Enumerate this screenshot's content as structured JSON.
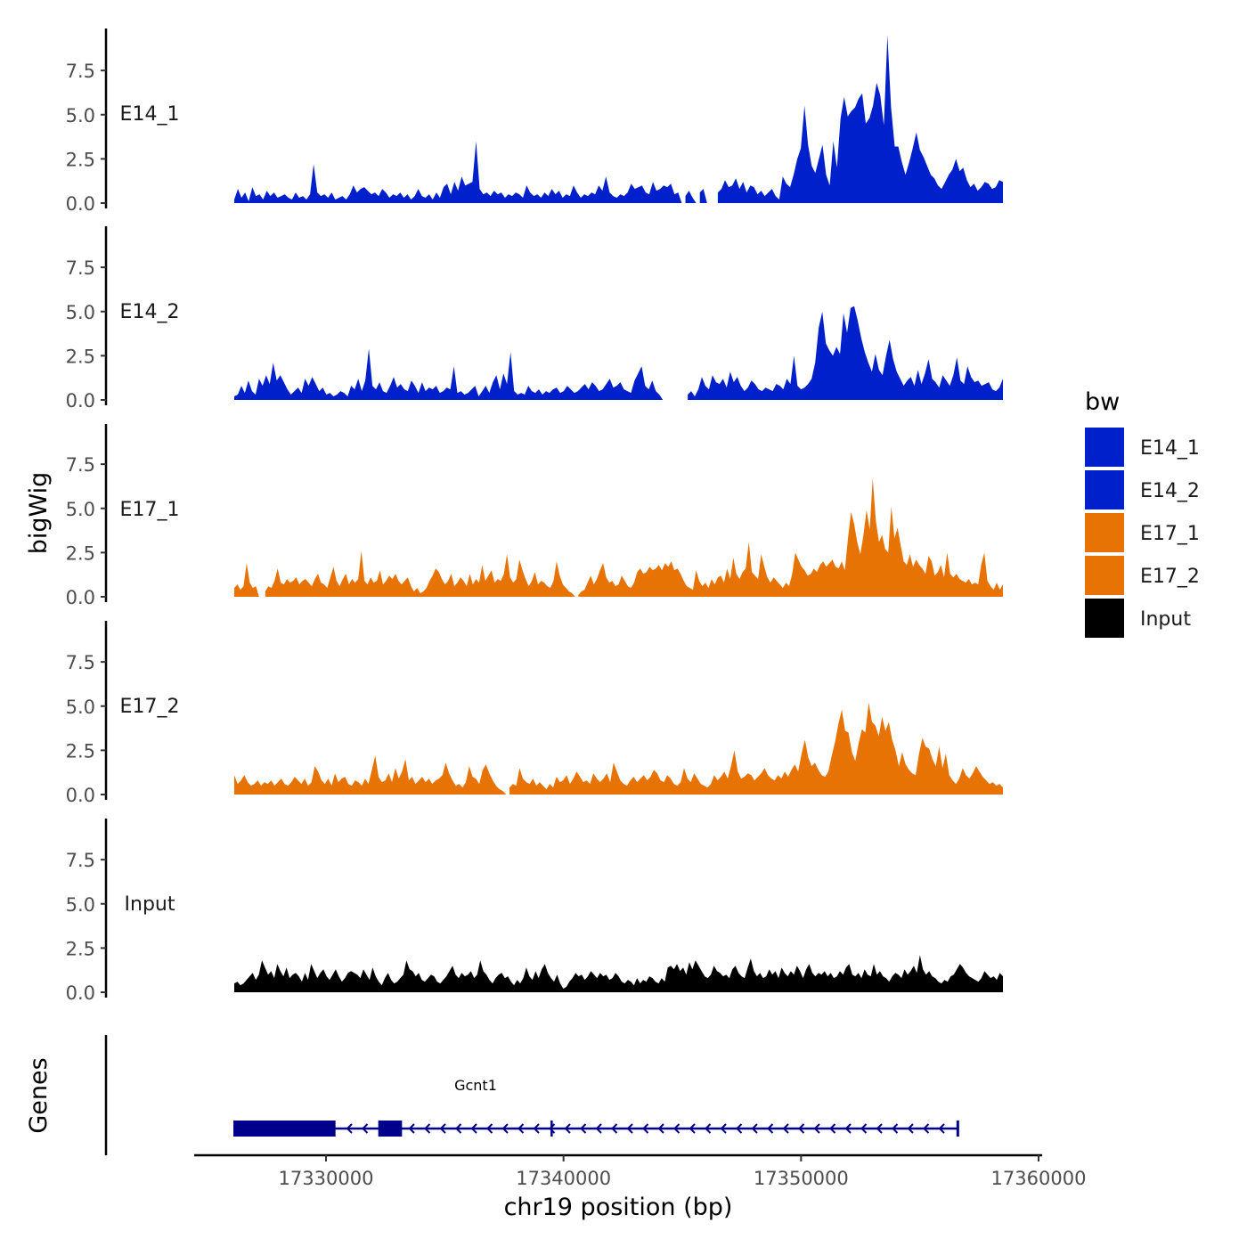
{
  "chart_data": {
    "type": "area",
    "title": "",
    "xlabel": "chr19 position (bp)",
    "ylabel": "bigWig",
    "xlim": [
      17324500,
      17360100
    ],
    "ylim": [
      0,
      10
    ],
    "x_ticks": [
      17330000,
      17340000,
      17350000,
      17360000
    ],
    "x_tick_labels": [
      "17330000",
      "17340000",
      "17350000",
      "17360000"
    ],
    "y_ticks": [
      0,
      2.5,
      5,
      7.5
    ],
    "y_tick_labels": [
      "0.0",
      "2.5",
      "5.0",
      "7.5"
    ],
    "data_range": [
      17326000,
      17358500
    ],
    "grid": false,
    "legend": {
      "title": "bw",
      "position": "right"
    },
    "series": [
      {
        "name": "E14_1",
        "label": "E14_1",
        "color": "#0020CC",
        "values": [
          0.2,
          0.8,
          0.3,
          0.6,
          0.1,
          0.9,
          0.4,
          0.5,
          0.2,
          0.7,
          0.4,
          0.6,
          0.3,
          0.4,
          0.5,
          0.3,
          0.2,
          0.6,
          0.3,
          0.4,
          0.2,
          0.5,
          2.2,
          0.6,
          0.4,
          0.5,
          0.3,
          0.6,
          0.2,
          0.3,
          0.4,
          0.2,
          0.5,
          1.0,
          0.6,
          0.8,
          0.9,
          0.7,
          0.5,
          0.6,
          0.4,
          0.8,
          0.6,
          0.3,
          0.5,
          0.4,
          0.6,
          0.3,
          0.5,
          0.2,
          0.4,
          0.8,
          0.4,
          0.3,
          0.5,
          0.2,
          0.6,
          0.3,
          0.9,
          1.1,
          0.5,
          1.2,
          0.7,
          1.5,
          1.0,
          1.1,
          1.2,
          3.5,
          0.8,
          0.5,
          0.6,
          0.4,
          0.7,
          0.5,
          0.6,
          0.3,
          0.5,
          0.4,
          0.6,
          0.5,
          0.3,
          1.0,
          0.6,
          0.4,
          0.5,
          0.3,
          0.6,
          0.4,
          0.8,
          0.5,
          0.7,
          0.3,
          0.5,
          0.4,
          1.0,
          0.6,
          0.3,
          0.5,
          0.4,
          0.6,
          0.5,
          1.0,
          0.7,
          1.5,
          0.6,
          0.4,
          0.3,
          0.5,
          0.4,
          0.6,
          1.1,
          0.8,
          0.9,
          1.0,
          0.6,
          0.5,
          1.2,
          0.7,
          0.8,
          1.0,
          0.9,
          1.1,
          0.5,
          0.6,
          0,
          0.4,
          0.7,
          0.3,
          0,
          0.6,
          0.8,
          0,
          0,
          0,
          0.6,
          0.8,
          1.3,
          0.9,
          1.0,
          1.4,
          0.8,
          1.2,
          0.6,
          1.0,
          0.9,
          0.5,
          0.7,
          0.4,
          0.6,
          0.8,
          0.4,
          0.2,
          1.5,
          1.1,
          0.9,
          1.6,
          2.5,
          3.1,
          5.5,
          3.3,
          2.1,
          1.7,
          2.5,
          3.3,
          1.6,
          1.0,
          3.5,
          2.0,
          4.8,
          6.0,
          4.9,
          5.2,
          5.4,
          5.9,
          6.2,
          4.5,
          4.8,
          5.5,
          6.8,
          6.1,
          4.4,
          9.5,
          5.4,
          3.2,
          3.2,
          2.3,
          1.6,
          2.3,
          3.1,
          4.0,
          3.0,
          2.6,
          2.1,
          1.6,
          1.4,
          1.0,
          0.8,
          1.2,
          1.6,
          1.9,
          2.5,
          1.8,
          2.0,
          1.3,
          0.9,
          1.1,
          0.7,
          0.9,
          1.2,
          1.1,
          0.8,
          0.9,
          1.3,
          1.2
        ]
      },
      {
        "name": "E14_2",
        "label": "E14_2",
        "color": "#0020CC",
        "values": [
          0.2,
          0.3,
          0.8,
          0.4,
          1.1,
          0.5,
          0.3,
          1.2,
          0.8,
          1.4,
          0.9,
          2.1,
          1.1,
          1.4,
          1.0,
          0.6,
          0.3,
          0.5,
          0.7,
          0.4,
          1.2,
          0.8,
          1.3,
          0.9,
          0.5,
          0.7,
          0.3,
          0.4,
          0.2,
          0.3,
          0.5,
          0.4,
          0.2,
          0.8,
          0.6,
          1.2,
          0.5,
          1.1,
          2.9,
          0.8,
          0.6,
          1.0,
          0.5,
          0.4,
          0.8,
          1.3,
          0.7,
          0.9,
          0.6,
          0.5,
          1.1,
          0.8,
          0.4,
          1.0,
          0.5,
          0.7,
          0.6,
          0.8,
          0.4,
          0.5,
          0.7,
          0.6,
          1.9,
          0.4,
          0.5,
          0.3,
          0.4,
          0.6,
          0.8,
          0.2,
          0.5,
          0.8,
          0.4,
          1.0,
          1.4,
          0.6,
          1.5,
          0.9,
          2.7,
          0.5,
          0.3,
          0.4,
          0.3,
          0.8,
          0.5,
          0.4,
          0.6,
          0.3,
          0.5,
          0.4,
          0.6,
          0.7,
          0.4,
          0.5,
          0.8,
          0.6,
          0.4,
          0.5,
          0.7,
          0.9,
          0.6,
          1.0,
          0.8,
          0.5,
          0.6,
          0.9,
          1.2,
          0.7,
          0.8,
          1.0,
          0.6,
          0.5,
          0.4,
          1.1,
          1.5,
          1.9,
          0.8,
          0.6,
          1.1,
          0.5,
          0.3,
          0,
          0,
          0,
          0,
          0,
          0,
          0,
          0.3,
          0.5,
          0.2,
          0.6,
          1.3,
          0.8,
          0.6,
          1.4,
          1.0,
          0.9,
          1.2,
          0.7,
          1.6,
          1.0,
          1.3,
          0.8,
          0.5,
          0.7,
          1.1,
          0.9,
          0.6,
          0.5,
          0.7,
          0.6,
          0.5,
          0.9,
          0.8,
          0.6,
          1.2,
          0.9,
          2.5,
          0.8,
          0.6,
          0.7,
          0.9,
          1.2,
          2.1,
          4.1,
          5.0,
          3.2,
          2.8,
          2.5,
          3.0,
          2.6,
          4.9,
          3.8,
          5.2,
          5.3,
          4.5,
          3.5,
          2.7,
          2.1,
          1.6,
          2.6,
          1.7,
          1.4,
          2.5,
          3.4,
          2.3,
          1.6,
          1.2,
          0.8,
          1.1,
          1.3,
          0.8,
          1.7,
          0.9,
          1.5,
          2.3,
          1.2,
          1.0,
          0.7,
          1.4,
          1.1,
          0.8,
          1.4,
          2.4,
          1.1,
          0.9,
          1.9,
          1.3,
          1.0,
          1.1,
          0.8,
          0.9,
          1.0,
          0.6,
          0.5,
          0.7,
          1.2
        ]
      },
      {
        "name": "E17_1",
        "label": "E17_1",
        "color": "#E87305",
        "values": [
          0.5,
          0.7,
          0.4,
          0.6,
          1.9,
          0.8,
          0.5,
          0.6,
          0,
          0,
          0.3,
          0.6,
          0.5,
          0.9,
          1.6,
          0.8,
          0.7,
          1.0,
          0.8,
          0.9,
          1.1,
          0.7,
          0.9,
          1.0,
          0.8,
          0.6,
          1.0,
          1.3,
          0.8,
          0.7,
          0.5,
          1.1,
          1.7,
          0.9,
          0.6,
          1.0,
          1.3,
          0.7,
          1.0,
          0.8,
          1.0,
          2.6,
          0.9,
          0.7,
          1.1,
          0.8,
          0.9,
          1.5,
          0.7,
          0.9,
          1.2,
          1.0,
          1.3,
          0.9,
          0.7,
          0.9,
          1.1,
          0.6,
          0.3,
          0.5,
          0.2,
          0.3,
          0.5,
          0.9,
          1.2,
          1.6,
          1.4,
          1.0,
          0.7,
          0.9,
          1.3,
          0.6,
          0.8,
          1.1,
          0.9,
          0.6,
          1.3,
          0.7,
          1.0,
          0.8,
          1.8,
          0.9,
          1.2,
          1.5,
          0.8,
          1.0,
          0.9,
          1.3,
          2.4,
          1.1,
          0.8,
          1.0,
          2.1,
          1.5,
          1.0,
          0.6,
          0.9,
          1.4,
          0.7,
          0.9,
          0.8,
          0.6,
          0.5,
          0.9,
          2.0,
          1.2,
          0.7,
          0.5,
          0.3,
          0.2,
          0,
          0.1,
          0.3,
          0.4,
          0.8,
          1.2,
          0.7,
          1.0,
          1.5,
          1.9,
          1.1,
          0.8,
          0.9,
          0.6,
          0.7,
          1.2,
          0.9,
          0.6,
          0.5,
          0.8,
          1.4,
          1.6,
          1.3,
          1.4,
          1.7,
          1.5,
          1.6,
          1.8,
          1.5,
          1.9,
          1.7,
          2.0,
          1.5,
          1.6,
          1.3,
          0.9,
          0.6,
          0.5,
          0.4,
          1.5,
          0.9,
          0.6,
          0.8,
          0.5,
          1.0,
          0.7,
          1.1,
          1.2,
          0.8,
          1.6,
          1.0,
          2.2,
          1.3,
          1.0,
          1.4,
          1.6,
          3.1,
          1.4,
          1.2,
          1.0,
          2.4,
          1.7,
          1.1,
          0.8,
          1.1,
          0.9,
          0.7,
          0.5,
          0.8,
          0.6,
          1.3,
          2.5,
          2.1,
          1.7,
          1.5,
          1.2,
          1.3,
          1.6,
          1.4,
          1.8,
          2.0,
          1.7,
          1.9,
          2.1,
          1.7,
          1.6,
          2.0,
          1.5,
          3.3,
          4.8,
          4.1,
          3.1,
          2.4,
          3.5,
          4.9,
          3.8,
          6.7,
          4.3,
          3.1,
          3.5,
          2.7,
          2.5,
          5.1,
          3.3,
          3.9,
          2.9,
          2.0,
          1.8,
          2.4,
          1.7,
          2.1,
          1.8,
          1.6,
          1.3,
          2.3,
          2.0,
          1.2,
          1.4,
          1.8,
          1.1,
          2.5,
          1.3,
          1.1,
          1.3,
          1.0,
          0.9,
          0.8,
          1.0,
          0.7,
          0.8,
          0.7,
          1.8,
          2.5,
          0.9,
          0.6,
          0.4,
          0.8,
          0.4,
          0.7
        ]
      },
      {
        "name": "E17_2",
        "label": "E17_2",
        "color": "#E87305",
        "values": [
          1.1,
          0.6,
          0.8,
          1.1,
          0.7,
          0.5,
          0.6,
          0.8,
          0.5,
          0.7,
          0.6,
          0.8,
          0.5,
          0.7,
          0.9,
          0.6,
          0.5,
          0.7,
          1.0,
          0.8,
          0.6,
          0.9,
          0.5,
          0.7,
          1.6,
          1.3,
          0.8,
          0.6,
          0.9,
          0.5,
          1.2,
          0.7,
          0.9,
          1.0,
          0.6,
          0.5,
          0.8,
          0.7,
          0.5,
          0.9,
          0.6,
          1.4,
          2.2,
          1.0,
          0.7,
          0.8,
          1.2,
          0.7,
          1.5,
          0.9,
          1.3,
          2.0,
          0.8,
          1.0,
          0.6,
          0.8,
          1.0,
          0.7,
          0.9,
          0.6,
          0.8,
          0.9,
          1.1,
          1.8,
          1.2,
          0.8,
          0.5,
          0.6,
          0.4,
          0.7,
          1.6,
          1.0,
          0.9,
          0.6,
          1.4,
          1.7,
          1.2,
          0.8,
          0.5,
          0.3,
          0.2,
          0,
          0.4,
          0.6,
          0.5,
          1.5,
          0.9,
          0.7,
          0.6,
          0.9,
          0.5,
          0.7,
          0.5,
          0.3,
          0.6,
          0.4,
          1.0,
          0.7,
          0.8,
          1.1,
          0.6,
          0.9,
          1.3,
          1.0,
          0.7,
          0.8,
          0.6,
          1.2,
          0.9,
          0.7,
          0.9,
          1.2,
          0.7,
          1.8,
          1.3,
          0.8,
          0.6,
          0.5,
          0.8,
          1.0,
          0.7,
          0.9,
          1.1,
          0.8,
          1.0,
          1.4,
          1.2,
          0.8,
          0.7,
          1.1,
          0.9,
          0.6,
          0.5,
          0.7,
          1.5,
          0.9,
          0.7,
          1.2,
          0.9,
          0.6,
          0.5,
          0.4,
          0.6,
          1.1,
          0.8,
          1.0,
          1.3,
          0.9,
          1.6,
          2.5,
          1.3,
          0.9,
          1.0,
          1.2,
          1.1,
          0.8,
          1.0,
          1.2,
          1.5,
          1.1,
          0.9,
          0.8,
          1.1,
          0.9,
          1.3,
          1.0,
          1.4,
          1.7,
          1.3,
          2.3,
          3.1,
          2.1,
          1.6,
          1.8,
          1.4,
          1.1,
          1.0,
          1.3,
          2.2,
          3.0,
          4.0,
          4.8,
          3.6,
          3.5,
          2.4,
          1.9,
          2.9,
          3.7,
          3.5,
          5.2,
          4.1,
          3.9,
          3.3,
          4.4,
          3.6,
          4.1,
          3.1,
          2.5,
          1.6,
          2.4,
          1.7,
          1.4,
          1.2,
          1.1,
          2.3,
          3.2,
          2.7,
          2.6,
          2.0,
          1.6,
          2.7,
          1.5,
          2.3,
          1.1,
          0.8,
          0.6,
          0.9,
          1.5,
          1.1,
          0.9,
          1.2,
          1.6,
          1.3,
          1.0,
          0.8,
          0.6,
          0.7,
          0.5,
          0.6,
          0.4
        ]
      },
      {
        "name": "Input",
        "label": "Input",
        "color": "#000000",
        "values": [
          0.5,
          0.6,
          0.4,
          0.5,
          0.7,
          0.9,
          1.1,
          0.7,
          1.0,
          1.8,
          1.4,
          1.0,
          1.2,
          0.8,
          1.6,
          1.2,
          0.9,
          1.4,
          0.8,
          1.0,
          1.1,
          0.9,
          0.6,
          1.1,
          0.7,
          1.6,
          1.2,
          0.8,
          1.1,
          1.3,
          0.9,
          0.7,
          1.0,
          1.3,
          0.9,
          0.6,
          0.8,
          1.1,
          1.2,
          1.1,
          1.0,
          0.8,
          1.3,
          1.0,
          0.7,
          1.4,
          0.9,
          0.6,
          0.4,
          0.8,
          1.1,
          0.7,
          0.5,
          0.6,
          0.8,
          1.0,
          1.8,
          1.3,
          1.2,
          0.9,
          1.1,
          0.7,
          0.6,
          0.8,
          1.0,
          0.9,
          0.6,
          0.5,
          0.7,
          0.9,
          1.2,
          1.5,
          1.0,
          0.8,
          1.1,
          0.9,
          1.0,
          1.2,
          0.8,
          1.0,
          1.8,
          1.2,
          1.0,
          0.7,
          0.5,
          0.8,
          1.0,
          1.1,
          0.8,
          0.9,
          0.6,
          0.4,
          0.7,
          0.5,
          0.8,
          1.4,
          0.9,
          0.7,
          1.2,
          0.8,
          1.3,
          1.6,
          1.1,
          0.8,
          0.6,
          1.0,
          0.5,
          0.2,
          0.3,
          0.6,
          0.8,
          1.1,
          0.9,
          1.0,
          0.7,
          0.9,
          1.2,
          1.0,
          0.8,
          1.1,
          0.9,
          1.0,
          0.7,
          0.8,
          1.1,
          0.9,
          0.6,
          0.5,
          0.7,
          0.6,
          0.4,
          0.8,
          0.5,
          0.7,
          0.6,
          0.9,
          0.8,
          0.6,
          0.5,
          0.8,
          0.6,
          1.4,
          1.5,
          1.3,
          1.6,
          1.2,
          1.4,
          1.0,
          1.7,
          1.3,
          1.8,
          1.5,
          1.2,
          0.9,
          0.8,
          1.0,
          1.5,
          1.2,
          1.1,
          0.9,
          1.0,
          0.8,
          1.3,
          1.5,
          1.1,
          0.9,
          0.8,
          1.4,
          1.9,
          1.2,
          0.9,
          1.1,
          0.8,
          0.9,
          1.3,
          1.0,
          1.2,
          0.8,
          1.4,
          1.1,
          0.9,
          1.2,
          1.0,
          1.5,
          1.2,
          0.8,
          1.3,
          1.6,
          1.1,
          0.9,
          1.1,
          1.0,
          1.2,
          0.9,
          1.1,
          0.8,
          0.9,
          1.2,
          1.0,
          1.4,
          1.6,
          1.0,
          0.9,
          1.1,
          0.8,
          1.3,
          1.0,
          0.9,
          1.6,
          1.0,
          1.2,
          0.9,
          0.8,
          0.6,
          0.9,
          1.1,
          1.0,
          0.8,
          1.3,
          1.0,
          1.2,
          1.5,
          1.1,
          2.1,
          1.3,
          1.0,
          1.2,
          0.9,
          0.8,
          0.6,
          0.5,
          0.7,
          0.6,
          0.9,
          1.0,
          1.3,
          1.6,
          1.4,
          1.1,
          0.9,
          0.8,
          0.7,
          0.6,
          0.8,
          1.2,
          1.0,
          0.8,
          0.9,
          0.7,
          1.1,
          0.9
        ]
      }
    ],
    "genes_track": {
      "label": "Genes",
      "gene": {
        "name": "Gcnt1",
        "color": "#00008B",
        "strand": "-",
        "start": 17326100,
        "end": 17356600,
        "thick_blocks": [
          [
            17326100,
            17330400
          ],
          [
            17332200,
            17333200
          ]
        ],
        "intron_marks": [
          17339500
        ]
      }
    }
  }
}
